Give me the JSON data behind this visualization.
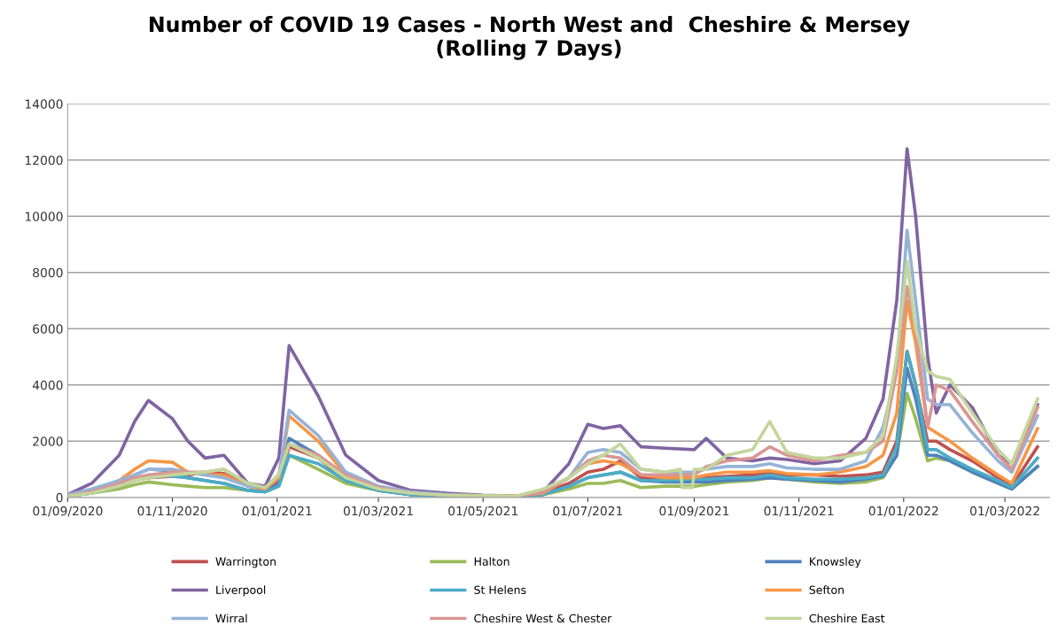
{
  "chart_data": {
    "type": "line",
    "title": "Number of COVID 19 Cases - North West and  Cheshire & Mersey\n(Rolling 7 Days)",
    "x": [
      "2020-09-01",
      "2020-09-15",
      "2020-10-01",
      "2020-10-10",
      "2020-10-18",
      "2020-11-01",
      "2020-11-10",
      "2020-11-20",
      "2020-12-01",
      "2020-12-15",
      "2020-12-25",
      "2021-01-02",
      "2021-01-08",
      "2021-01-25",
      "2021-02-10",
      "2021-03-01",
      "2021-03-20",
      "2021-04-10",
      "2021-05-01",
      "2021-05-20",
      "2021-06-05",
      "2021-06-20",
      "2021-07-01",
      "2021-07-10",
      "2021-07-20",
      "2021-08-01",
      "2021-08-15",
      "2021-09-01",
      "2021-09-08",
      "2021-09-20",
      "2021-10-05",
      "2021-10-15",
      "2021-10-25",
      "2021-11-10",
      "2021-11-25",
      "2021-12-10",
      "2021-12-20",
      "2021-12-28",
      "2022-01-03",
      "2022-01-08",
      "2022-01-15",
      "2022-01-20",
      "2022-01-28",
      "2022-02-10",
      "2022-02-25",
      "2022-03-05",
      "2022-03-20"
    ],
    "series": [
      {
        "name": "Warrington",
        "color": "#c0504d",
        "values": [
          50,
          150,
          400,
          600,
          700,
          750,
          800,
          900,
          850,
          400,
          300,
          600,
          1800,
          1400,
          600,
          300,
          150,
          80,
          50,
          30,
          150,
          500,
          900,
          1000,
          1300,
          700,
          650,
          650,
          700,
          750,
          800,
          900,
          800,
          800,
          750,
          800,
          900,
          2000,
          5200,
          4000,
          2000,
          2000,
          1700,
          1300,
          700,
          400,
          1800
        ]
      },
      {
        "name": "Halton",
        "color": "#9bbb59",
        "values": [
          50,
          150,
          300,
          450,
          550,
          450,
          400,
          350,
          350,
          250,
          200,
          400,
          1500,
          1000,
          500,
          250,
          100,
          50,
          30,
          20,
          100,
          300,
          500,
          500,
          600,
          350,
          400,
          400,
          450,
          550,
          600,
          700,
          650,
          550,
          500,
          550,
          700,
          1500,
          3700,
          2800,
          1300,
          1400,
          1300,
          900,
          500,
          300,
          1100
        ]
      },
      {
        "name": "Knowsley",
        "color": "#4f81bd",
        "values": [
          50,
          200,
          500,
          800,
          1000,
          950,
          700,
          600,
          500,
          250,
          200,
          500,
          2100,
          1500,
          600,
          250,
          100,
          50,
          30,
          20,
          100,
          400,
          700,
          800,
          900,
          600,
          550,
          550,
          550,
          600,
          650,
          700,
          650,
          600,
          550,
          650,
          750,
          1500,
          4600,
          3500,
          1500,
          1500,
          1300,
          900,
          500,
          300,
          1100
        ]
      },
      {
        "name": "Liverpool",
        "color": "#8064a2",
        "values": [
          100,
          500,
          1500,
          2700,
          3450,
          2800,
          2000,
          1400,
          1500,
          500,
          400,
          1400,
          5400,
          3600,
          1500,
          600,
          250,
          150,
          80,
          50,
          200,
          1200,
          2600,
          2450,
          2550,
          1800,
          1750,
          1700,
          2100,
          1400,
          1300,
          1400,
          1350,
          1200,
          1300,
          2100,
          3500,
          7000,
          12400,
          10000,
          5000,
          3000,
          4000,
          3200,
          1500,
          1200,
          3300
        ]
      },
      {
        "name": "St Helens",
        "color": "#4bacc6",
        "values": [
          50,
          150,
          400,
          600,
          800,
          750,
          700,
          600,
          500,
          250,
          200,
          400,
          1500,
          1200,
          600,
          250,
          100,
          50,
          30,
          20,
          100,
          400,
          700,
          800,
          900,
          600,
          600,
          650,
          650,
          700,
          700,
          800,
          700,
          650,
          650,
          700,
          800,
          1800,
          5200,
          4000,
          1700,
          1700,
          1400,
          1000,
          600,
          350,
          1400
        ]
      },
      {
        "name": "Sefton",
        "color": "#f79646",
        "values": [
          100,
          200,
          600,
          1000,
          1300,
          1250,
          900,
          800,
          800,
          400,
          300,
          700,
          2900,
          2000,
          800,
          350,
          150,
          80,
          60,
          50,
          150,
          700,
          1200,
          1300,
          1200,
          800,
          700,
          700,
          800,
          900,
          900,
          950,
          850,
          800,
          900,
          1100,
          1500,
          3000,
          7000,
          5500,
          2500,
          2300,
          2000,
          1400,
          800,
          500,
          2450
        ]
      },
      {
        "name": "Wirral",
        "color": "#95b3d7",
        "values": [
          100,
          300,
          600,
          800,
          1000,
          1000,
          900,
          800,
          700,
          400,
          350,
          800,
          3100,
          2200,
          900,
          400,
          200,
          100,
          50,
          30,
          200,
          700,
          1600,
          1700,
          1600,
          1000,
          900,
          900,
          1000,
          1100,
          1100,
          1200,
          1050,
          1000,
          1000,
          1300,
          2500,
          4500,
          9500,
          7000,
          3500,
          3300,
          3300,
          2300,
          1300,
          900,
          2900
        ]
      },
      {
        "name": "Cheshire West & Chester",
        "color": "#d99694",
        "values": [
          50,
          200,
          500,
          700,
          800,
          900,
          900,
          900,
          1000,
          500,
          350,
          800,
          1900,
          1500,
          800,
          350,
          150,
          80,
          50,
          30,
          200,
          700,
          1300,
          1500,
          1400,
          800,
          800,
          800,
          1100,
          1300,
          1400,
          1800,
          1500,
          1300,
          1500,
          1600,
          2000,
          4500,
          7500,
          6000,
          2500,
          4000,
          3800,
          2700,
          1500,
          1000,
          3200
        ]
      },
      {
        "name": "Cheshire East",
        "color": "#c3d69b",
        "x": [
          "2020-09-01",
          "2020-09-15",
          "2020-10-01",
          "2020-10-10",
          "2020-10-18",
          "2020-11-01",
          "2020-11-10",
          "2020-11-20",
          "2020-12-01",
          "2020-12-15",
          "2020-12-25",
          "2021-01-02",
          "2021-01-08",
          "2021-01-25",
          "2021-02-10",
          "2021-03-01",
          "2021-03-20",
          "2021-04-10",
          "2021-05-01",
          "2021-05-20",
          "2021-06-05",
          "2021-06-20",
          "2021-07-01",
          "2021-07-10",
          "2021-07-20",
          "2021-08-01",
          "2021-08-15",
          "2021-08-24",
          "2021-08-25",
          "2021-08-31",
          "2021-09-01",
          "2021-09-08",
          "2021-09-20",
          "2021-10-05",
          "2021-10-15",
          "2021-10-25",
          "2021-11-10",
          "2021-11-25",
          "2021-12-10",
          "2021-12-20",
          "2021-12-28",
          "2022-01-03",
          "2022-01-08",
          "2022-01-15",
          "2022-01-20",
          "2022-01-28",
          "2022-02-10",
          "2022-02-25",
          "2022-03-05",
          "2022-03-20"
        ],
        "values": [
          50,
          150,
          400,
          600,
          700,
          800,
          850,
          900,
          1000,
          500,
          350,
          800,
          1900,
          1400,
          700,
          300,
          150,
          80,
          60,
          40,
          300,
          700,
          1200,
          1500,
          1900,
          1000,
          900,
          1000,
          350,
          350,
          1000,
          1000,
          1500,
          1700,
          2700,
          1600,
          1400,
          1400,
          1600,
          2200,
          5000,
          8400,
          6000,
          4500,
          4300,
          4200,
          3000,
          1700,
          1200,
          3500
        ]
      }
    ],
    "xlim": [
      "2020-09-01",
      "2022-03-27"
    ],
    "xticks": [
      {
        "value": "2020-09-01",
        "label": "01/09/2020"
      },
      {
        "value": "2020-11-01",
        "label": "01/11/2020"
      },
      {
        "value": "2021-01-01",
        "label": "01/01/2021"
      },
      {
        "value": "2021-03-01",
        "label": "01/03/2021"
      },
      {
        "value": "2021-05-01",
        "label": "01/05/2021"
      },
      {
        "value": "2021-07-01",
        "label": "01/07/2021"
      },
      {
        "value": "2021-09-01",
        "label": "01/09/2021"
      },
      {
        "value": "2021-11-01",
        "label": "01/11/2021"
      },
      {
        "value": "2022-01-01",
        "label": "01/01/2022"
      },
      {
        "value": "2022-03-01",
        "label": "01/03/2022"
      }
    ],
    "ylim": [
      0,
      14000
    ],
    "yticks": [
      0,
      2000,
      4000,
      6000,
      8000,
      10000,
      12000,
      14000
    ],
    "grid": "y",
    "legend": "bottom",
    "line_style": "solid",
    "marker": "none"
  }
}
